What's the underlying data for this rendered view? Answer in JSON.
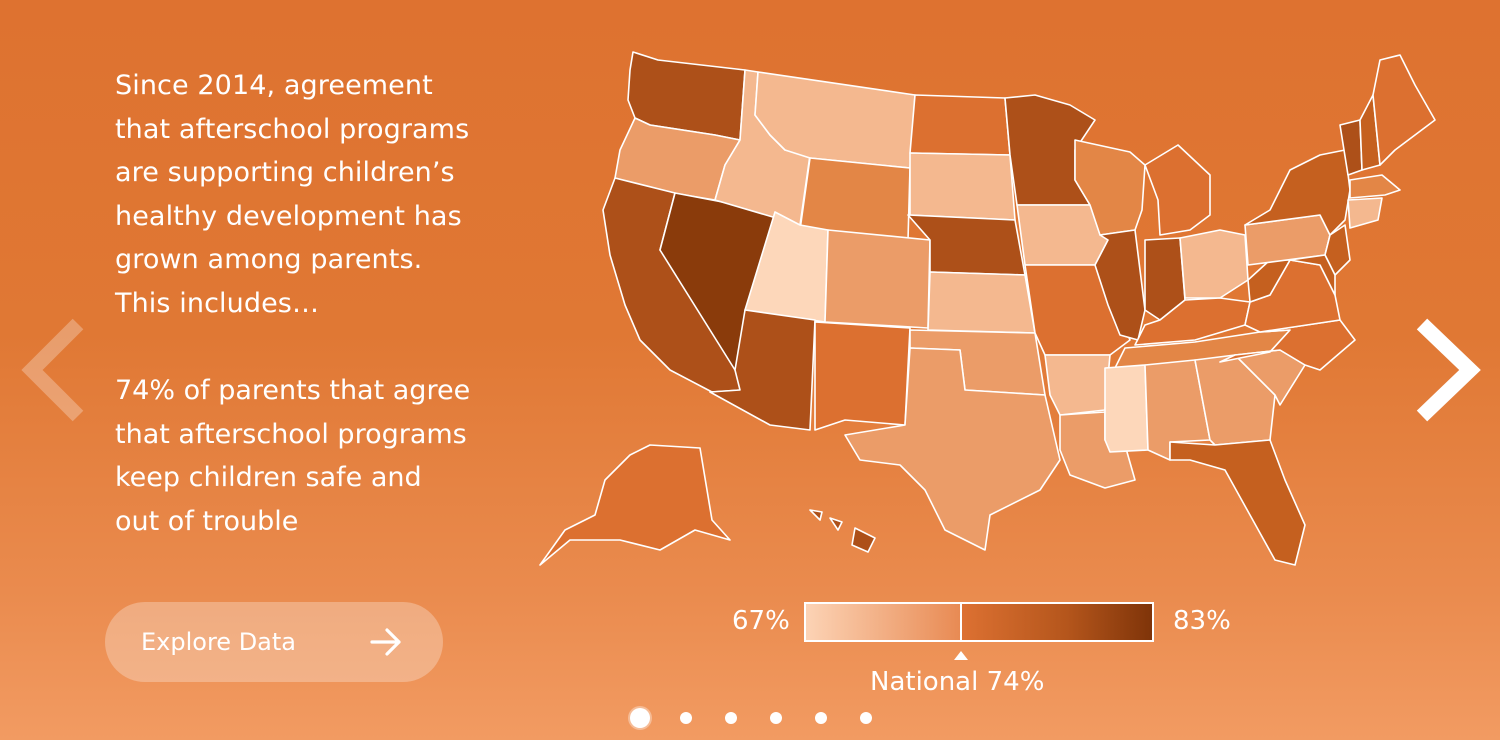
{
  "intro_text": "Since 2014, agreement\nthat afterschool programs\nare supporting children’s\nhealthy development has\ngrown among parents.\nThis includes…",
  "stat_text": "74% of parents that agree\nthat afterschool programs\nkeep children safe and\nout of trouble",
  "explore_button": {
    "label": "Explore Data",
    "icon": "arrow-right-icon"
  },
  "nav": {
    "prev_icon": "chevron-left-icon",
    "next_icon": "chevron-right-icon"
  },
  "legend": {
    "min_label": "67%",
    "max_label": "83%",
    "national_label": "National 74%",
    "colors": {
      "low": "#fcd3b5",
      "mid": "#dd7132",
      "high": "#7f3409"
    }
  },
  "pagination": {
    "count": 6,
    "active_index": 0
  },
  "colors": {
    "background": "#e07834",
    "shade_1": "#fdd7ba",
    "shade_2": "#f4b88f",
    "shade_3": "#eb9c68",
    "shade_4": "#e38646",
    "shade_5": "#dc7030",
    "shade_6": "#c5601f",
    "shade_7": "#ad5019",
    "shade_8": "#8a3b0b"
  },
  "map_states": [
    {
      "id": "WA",
      "shade": 7
    },
    {
      "id": "OR",
      "shade": 3
    },
    {
      "id": "CA",
      "shade": 7
    },
    {
      "id": "NV",
      "shade": 8
    },
    {
      "id": "ID",
      "shade": 2
    },
    {
      "id": "MT",
      "shade": 2
    },
    {
      "id": "WY",
      "shade": 4
    },
    {
      "id": "UT",
      "shade": 1
    },
    {
      "id": "AZ",
      "shade": 7
    },
    {
      "id": "CO",
      "shade": 3
    },
    {
      "id": "NM",
      "shade": 5
    },
    {
      "id": "ND",
      "shade": 5
    },
    {
      "id": "SD",
      "shade": 2
    },
    {
      "id": "NE",
      "shade": 7
    },
    {
      "id": "KS",
      "shade": 2
    },
    {
      "id": "OK",
      "shade": 3
    },
    {
      "id": "TX",
      "shade": 3
    },
    {
      "id": "MN",
      "shade": 7
    },
    {
      "id": "IA",
      "shade": 2
    },
    {
      "id": "MO",
      "shade": 5
    },
    {
      "id": "AR",
      "shade": 2
    },
    {
      "id": "LA",
      "shade": 3
    },
    {
      "id": "WI",
      "shade": 4
    },
    {
      "id": "IL",
      "shade": 7
    },
    {
      "id": "MI",
      "shade": 5
    },
    {
      "id": "IN",
      "shade": 7
    },
    {
      "id": "OH",
      "shade": 2
    },
    {
      "id": "KY",
      "shade": 5
    },
    {
      "id": "TN",
      "shade": 4
    },
    {
      "id": "MS",
      "shade": 1
    },
    {
      "id": "AL",
      "shade": 3
    },
    {
      "id": "GA",
      "shade": 3
    },
    {
      "id": "FL",
      "shade": 6
    },
    {
      "id": "SC",
      "shade": 3
    },
    {
      "id": "NC",
      "shade": 5
    },
    {
      "id": "VA",
      "shade": 5
    },
    {
      "id": "WV",
      "shade": 6
    },
    {
      "id": "PA",
      "shade": 3
    },
    {
      "id": "NY",
      "shade": 6
    },
    {
      "id": "VT",
      "shade": 7
    },
    {
      "id": "NH",
      "shade": 6
    },
    {
      "id": "ME",
      "shade": 5
    },
    {
      "id": "MA",
      "shade": 4
    },
    {
      "id": "CT",
      "shade": 2
    },
    {
      "id": "NJ",
      "shade": 6
    },
    {
      "id": "MD",
      "shade": 6
    },
    {
      "id": "AK",
      "shade": 5
    },
    {
      "id": "HI",
      "shade": 7
    }
  ]
}
